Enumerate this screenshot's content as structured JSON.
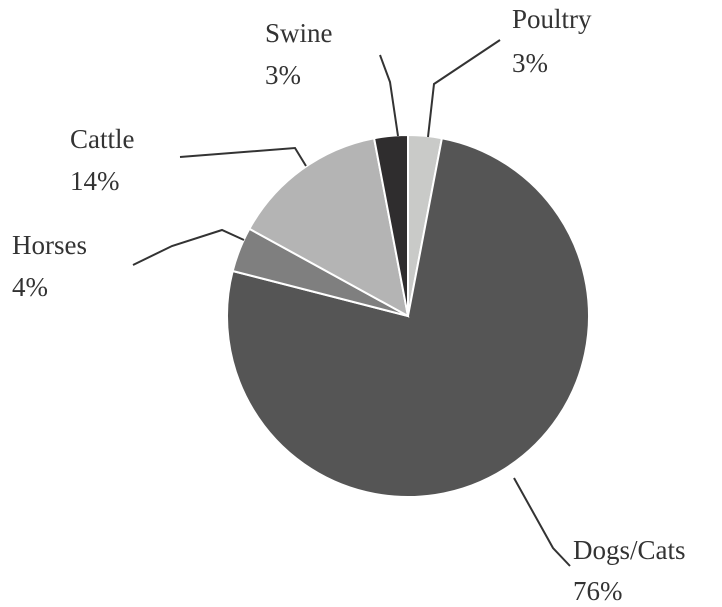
{
  "chart_data": {
    "type": "pie",
    "slices": [
      {
        "label": "Poultry",
        "value": 3,
        "value_label": "3%",
        "color": "#c9cac8"
      },
      {
        "label": "Dogs/Cats",
        "value": 76,
        "value_label": "76%",
        "color": "#555555"
      },
      {
        "label": "Horses",
        "value": 4,
        "value_label": "4%",
        "color": "#7f7f7f"
      },
      {
        "label": "Cattle",
        "value": 14,
        "value_label": "14%",
        "color": "#b4b4b4"
      },
      {
        "label": "Swine",
        "value": 3,
        "value_label": "3%",
        "color": "#2f2d2e"
      }
    ],
    "start_angle_deg": 0,
    "direction": "clockwise",
    "slice_border_color": "#ffffff",
    "leader_line_color": "#333333"
  }
}
